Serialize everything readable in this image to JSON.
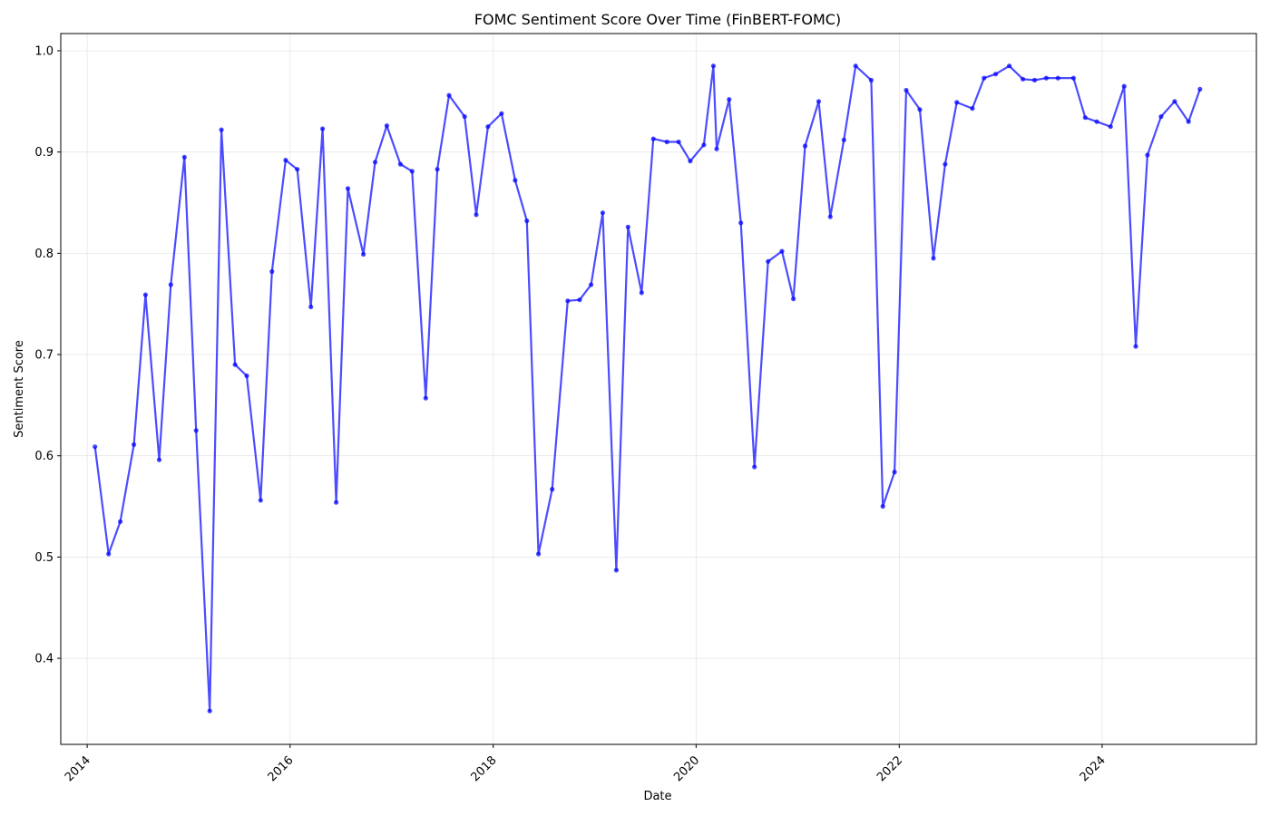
{
  "chart_data": {
    "type": "line",
    "title": "FOMC Sentiment Score Over Time (FinBERT-FOMC)",
    "xlabel": "Date",
    "ylabel": "Sentiment Score",
    "xlim": [
      "2013-09-28",
      "2025-07-09"
    ],
    "ylim": [
      0.315,
      1.017
    ],
    "x_ticks": [
      "2014",
      "2016",
      "2018",
      "2020",
      "2022",
      "2024"
    ],
    "y_ticks": [
      "0.4",
      "0.5",
      "0.6",
      "0.7",
      "0.8",
      "0.9",
      "1.0"
    ],
    "grid": true,
    "series": [
      {
        "color": "#0000ff",
        "x": [
          "2014-01-29",
          "2014-03-19",
          "2014-04-30",
          "2014-06-18",
          "2014-07-30",
          "2014-09-17",
          "2014-10-29",
          "2014-12-17",
          "2015-01-28",
          "2015-03-18",
          "2015-04-29",
          "2015-06-17",
          "2015-07-29",
          "2015-09-17",
          "2015-10-28",
          "2015-12-16",
          "2016-01-27",
          "2016-03-16",
          "2016-04-27",
          "2016-06-15",
          "2016-07-27",
          "2016-09-21",
          "2016-11-02",
          "2016-12-14",
          "2017-02-01",
          "2017-03-15",
          "2017-05-03",
          "2017-06-14",
          "2017-07-26",
          "2017-09-20",
          "2017-11-01",
          "2017-12-13",
          "2018-01-31",
          "2018-03-21",
          "2018-05-02",
          "2018-06-13",
          "2018-08-01",
          "2018-09-26",
          "2018-11-08",
          "2018-12-19",
          "2019-01-30",
          "2019-03-20",
          "2019-05-01",
          "2019-06-19",
          "2019-07-31",
          "2019-09-18",
          "2019-10-30",
          "2019-12-11",
          "2020-01-29",
          "2020-03-03",
          "2020-03-15",
          "2020-04-29",
          "2020-06-10",
          "2020-07-29",
          "2020-09-16",
          "2020-11-05",
          "2020-12-16",
          "2021-01-27",
          "2021-03-17",
          "2021-04-28",
          "2021-06-16",
          "2021-07-28",
          "2021-09-22",
          "2021-11-03",
          "2021-12-15",
          "2022-01-26",
          "2022-03-16",
          "2022-05-04",
          "2022-06-15",
          "2022-07-27",
          "2022-09-21",
          "2022-11-02",
          "2022-12-14",
          "2023-02-01",
          "2023-03-22",
          "2023-05-03",
          "2023-06-14",
          "2023-07-26",
          "2023-09-20",
          "2023-11-01",
          "2023-12-13",
          "2024-01-31",
          "2024-03-20",
          "2024-05-01",
          "2024-06-12",
          "2024-07-31",
          "2024-09-18",
          "2024-11-07",
          "2024-12-18"
        ],
        "values": [
          0.609,
          0.503,
          0.535,
          0.611,
          0.759,
          0.596,
          0.769,
          0.895,
          0.625,
          0.348,
          0.922,
          0.69,
          0.679,
          0.556,
          0.782,
          0.892,
          0.883,
          0.747,
          0.923,
          0.554,
          0.864,
          0.799,
          0.89,
          0.926,
          0.888,
          0.881,
          0.657,
          0.883,
          0.956,
          0.935,
          0.838,
          0.925,
          0.938,
          0.872,
          0.832,
          0.503,
          0.567,
          0.753,
          0.754,
          0.769,
          0.84,
          0.487,
          0.826,
          0.761,
          0.913,
          0.91,
          0.91,
          0.891,
          0.907,
          0.985,
          0.903,
          0.952,
          0.83,
          0.589,
          0.792,
          0.802,
          0.755,
          0.906,
          0.95,
          0.836,
          0.912,
          0.985,
          0.971,
          0.55,
          0.584,
          0.961,
          0.942,
          0.795,
          0.888,
          0.949,
          0.943,
          0.973,
          0.977,
          0.985,
          0.972,
          0.971,
          0.973,
          0.973,
          0.973,
          0.934,
          0.93,
          0.925,
          0.965,
          0.708,
          0.897,
          0.935,
          0.95,
          0.93,
          0.962
        ]
      }
    ]
  }
}
